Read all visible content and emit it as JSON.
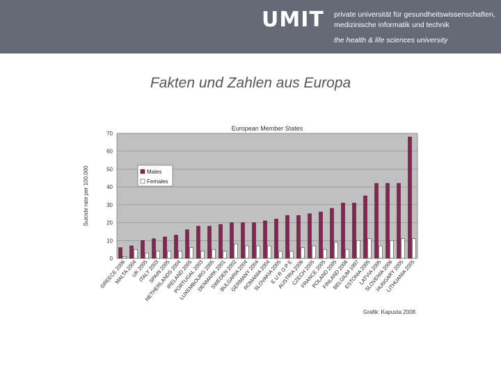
{
  "header": {
    "logo": "UMIT",
    "tagline1": "private universität für gesundheitswissenschaften,",
    "tagline2": "medizinische informatik und technik",
    "tagline3": "the health & life sciences university",
    "background": "#646973"
  },
  "slide": {
    "title": "Fakten und Zahlen aus Europa"
  },
  "chart_data": {
    "type": "bar",
    "title": "European Member States",
    "ylabel": "Suicide rate per 100.000",
    "xlabel": "",
    "ylim": [
      0,
      70
    ],
    "yticks": [
      0,
      10,
      20,
      30,
      40,
      50,
      60,
      70
    ],
    "grid": true,
    "legend_position": "top-left",
    "source": "Grafik: Kapusta 2008",
    "categories": [
      "GREECE 2006",
      "MALTA 2004",
      "UK 2005",
      "ITALY 2003",
      "SPAIN 2005",
      "NETHERLANDS 2004",
      "IRELAND 2005",
      "PORTUGAL 2003",
      "LUXEMBOURG 2005",
      "DENMARK 2001",
      "SWEDEN 2002",
      "BULGARIA 2004",
      "GERMANY 2004",
      "ROMANIA 2004",
      "SLOVAKIA 2005",
      "E U R O P E",
      "AUSTRIA 2006",
      "CZECH 2005",
      "FRANCE 2005",
      "POLAND 2005",
      "FINLAND 2006",
      "BELGIUM 1997",
      "ESTONIA 2005",
      "LATVIA 2005",
      "SLOVENIA 2006",
      "HUNGARY 2005",
      "LITHUANIA 2005"
    ],
    "series": [
      {
        "name": "Males",
        "color": "#8b2252",
        "values": [
          6,
          7,
          10,
          11,
          12,
          13,
          16,
          18,
          18,
          19,
          20,
          20,
          20,
          21,
          22,
          24,
          24,
          25,
          26,
          28,
          31,
          31,
          35,
          42,
          42,
          42,
          68
        ]
      },
      {
        "name": "Females",
        "color": "#ffffff",
        "values": [
          1,
          5,
          3,
          4,
          4,
          4,
          6,
          4,
          5,
          4,
          8,
          7,
          7,
          7,
          4,
          4,
          6,
          7,
          5,
          9,
          5,
          10,
          11,
          7,
          10,
          11,
          11
        ]
      }
    ],
    "colors": {
      "plot_background": "#c0c0c0"
    }
  }
}
